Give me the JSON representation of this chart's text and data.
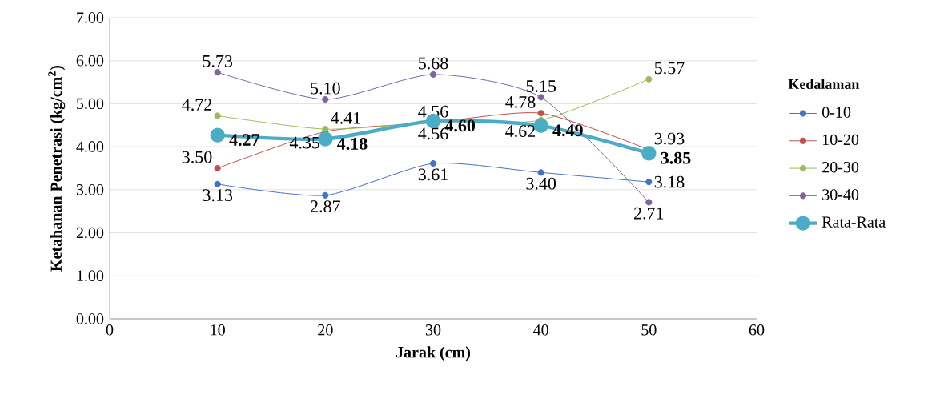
{
  "chart_data": {
    "type": "line",
    "xlabel": "Jarak (cm)",
    "ylabel": "Ketahanan Penetrasi (kg/cm$^{2}$)",
    "legend_title": "Kedalaman",
    "x": [
      10,
      20,
      30,
      40,
      50
    ],
    "series": [
      {
        "name": "0-10",
        "color": "#4472c4",
        "values": [
          3.13,
          2.87,
          3.61,
          3.4,
          3.18
        ],
        "value_labels": [
          "3.13",
          "2.87",
          "3.61",
          "3.40",
          "3.18"
        ]
      },
      {
        "name": "10-20",
        "color": "#c0504d",
        "values": [
          3.5,
          4.35,
          4.56,
          4.78,
          3.93
        ],
        "value_labels": [
          "3.50",
          "4.35",
          "4.56",
          "4.78",
          "3.93"
        ]
      },
      {
        "name": "20-30",
        "color": "#9bbb59",
        "values": [
          4.72,
          4.41,
          4.56,
          4.62,
          5.57
        ],
        "value_labels": [
          "4.72",
          "4.41",
          "4.56",
          "4.62",
          "5.57"
        ]
      },
      {
        "name": "30-40",
        "color": "#8064a2",
        "values": [
          5.73,
          5.1,
          5.68,
          5.15,
          2.71
        ],
        "value_labels": [
          "5.73",
          "5.10",
          "5.68",
          "5.15",
          "2.71"
        ]
      },
      {
        "name": "Rata-Rata",
        "color": "#4bacc6",
        "values": [
          4.27,
          4.18,
          4.6,
          4.49,
          3.85
        ],
        "value_labels": [
          "**4.27**",
          "**4.18**",
          "**4.60**",
          "**4.49**",
          "**3.85**"
        ]
      }
    ],
    "xlim": [
      0,
      60
    ],
    "xticks": [
      0,
      10,
      20,
      30,
      40,
      50,
      60
    ],
    "ylim": [
      0,
      7
    ],
    "yticks": [
      {
        "value": 0,
        "label": "0.00"
      },
      {
        "value": 1,
        "label": "1.00"
      },
      {
        "value": 2,
        "label": "2.00"
      },
      {
        "value": 3,
        "label": "3.00"
      },
      {
        "value": 4,
        "label": "4.00"
      },
      {
        "value": 5,
        "label": "5.00"
      },
      {
        "value": 6,
        "label": "6.00"
      },
      {
        "value": 7,
        "label": "7.00"
      }
    ],
    "grid": "y",
    "legend": "right",
    "marker": "circle",
    "line_style": "solid"
  }
}
